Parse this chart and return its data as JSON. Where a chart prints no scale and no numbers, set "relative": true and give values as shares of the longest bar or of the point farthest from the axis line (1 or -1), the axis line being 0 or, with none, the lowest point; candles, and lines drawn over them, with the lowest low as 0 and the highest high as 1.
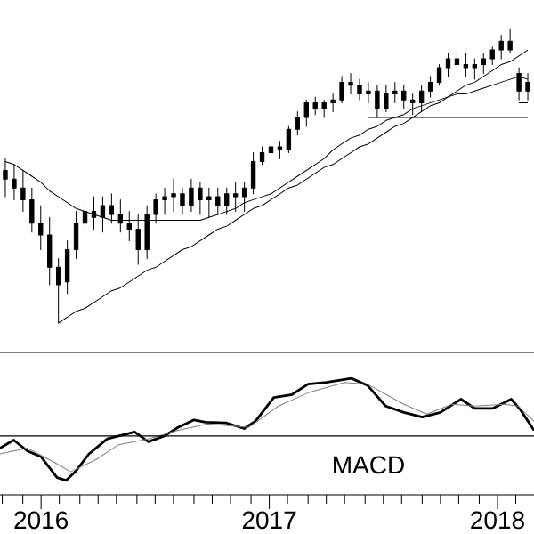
{
  "chart_data": [
    {
      "type": "candlestick",
      "relative": true,
      "tick_labels": false,
      "categories": [
        null,
        null,
        null,
        null,
        null,
        null,
        null,
        null,
        null,
        null,
        null,
        null,
        null,
        null,
        null,
        null,
        null,
        null,
        null,
        null,
        null,
        null,
        null,
        null,
        null,
        null,
        null,
        null,
        null,
        null,
        null,
        null,
        null,
        null,
        null,
        null,
        null,
        null,
        null,
        null,
        null,
        null,
        null,
        null,
        null,
        null,
        null,
        null,
        null,
        null,
        null,
        null,
        null,
        null,
        null,
        null,
        null,
        null,
        null,
        null
      ],
      "ohlc": [
        [
          0.52,
          0.56,
          0.43,
          0.49
        ],
        [
          0.49,
          0.54,
          0.42,
          0.46
        ],
        [
          0.46,
          0.52,
          0.38,
          0.42
        ],
        [
          0.42,
          0.46,
          0.31,
          0.34
        ],
        [
          0.34,
          0.4,
          0.25,
          0.3
        ],
        [
          0.3,
          0.36,
          0.13,
          0.19
        ],
        [
          0.19,
          0.22,
          0,
          0.13
        ],
        [
          0.14,
          0.28,
          0.1,
          0.25
        ],
        [
          0.25,
          0.38,
          0.22,
          0.34
        ],
        [
          0.34,
          0.42,
          0.3,
          0.38
        ],
        [
          0.38,
          0.43,
          0.32,
          0.36
        ],
        [
          0.36,
          0.43,
          0.31,
          0.4
        ],
        [
          0.4,
          0.44,
          0.34,
          0.37
        ],
        [
          0.37,
          0.42,
          0.31,
          0.34
        ],
        [
          0.34,
          0.38,
          0.28,
          0.32
        ],
        [
          0.32,
          0.37,
          0.2,
          0.25
        ],
        [
          0.25,
          0.4,
          0.22,
          0.37
        ],
        [
          0.37,
          0.44,
          0.34,
          0.42
        ],
        [
          0.42,
          0.46,
          0.37,
          0.43
        ],
        [
          0.43,
          0.49,
          0.38,
          0.44
        ],
        [
          0.44,
          0.46,
          0.37,
          0.4
        ],
        [
          0.4,
          0.49,
          0.38,
          0.46
        ],
        [
          0.46,
          0.48,
          0.37,
          0.42
        ],
        [
          0.42,
          0.46,
          0.36,
          0.43
        ],
        [
          0.43,
          0.46,
          0.37,
          0.4
        ],
        [
          0.4,
          0.46,
          0.37,
          0.44
        ],
        [
          0.44,
          0.48,
          0.38,
          0.43
        ],
        [
          0.43,
          0.48,
          0.38,
          0.46
        ],
        [
          0.46,
          0.58,
          0.44,
          0.55
        ],
        [
          0.55,
          0.6,
          0.54,
          0.58
        ],
        [
          0.58,
          0.62,
          0.55,
          0.6
        ],
        [
          0.6,
          0.62,
          0.56,
          0.59
        ],
        [
          0.59,
          0.67,
          0.58,
          0.66
        ],
        [
          0.66,
          0.72,
          0.64,
          0.7
        ],
        [
          0.7,
          0.76,
          0.67,
          0.75
        ],
        [
          0.75,
          0.77,
          0.71,
          0.73
        ],
        [
          0.73,
          0.76,
          0.7,
          0.75
        ],
        [
          0.75,
          0.78,
          0.72,
          0.76
        ],
        [
          0.76,
          0.84,
          0.75,
          0.82
        ],
        [
          0.82,
          0.85,
          0.78,
          0.81
        ],
        [
          0.81,
          0.83,
          0.76,
          0.78
        ],
        [
          0.78,
          0.82,
          0.75,
          0.79
        ],
        [
          0.79,
          0.81,
          0.7,
          0.73
        ],
        [
          0.73,
          0.81,
          0.72,
          0.78
        ],
        [
          0.78,
          0.82,
          0.75,
          0.79
        ],
        [
          0.79,
          0.81,
          0.73,
          0.76
        ],
        [
          0.76,
          0.78,
          0.71,
          0.75
        ],
        [
          0.75,
          0.81,
          0.72,
          0.79
        ],
        [
          0.79,
          0.84,
          0.77,
          0.82
        ],
        [
          0.82,
          0.88,
          0.81,
          0.87
        ],
        [
          0.87,
          0.92,
          0.84,
          0.9
        ],
        [
          0.9,
          0.93,
          0.87,
          0.88
        ],
        [
          0.88,
          0.92,
          0.84,
          0.87
        ],
        [
          0.87,
          0.9,
          0.83,
          0.88
        ],
        [
          0.88,
          0.92,
          0.85,
          0.9
        ],
        [
          0.9,
          0.94,
          0.88,
          0.93
        ],
        [
          0.93,
          0.98,
          0.9,
          0.96
        ],
        [
          0.96,
          1.0,
          0.92,
          0.93
        ],
        [
          0.85,
          0.87,
          0.76,
          0.79
        ],
        [
          0.79,
          0.85,
          0.76,
          0.82
        ]
      ],
      "series": [
        {
          "type": "line",
          "color": "#000000",
          "values": [
            0.55,
            0.54,
            0.52,
            0.5,
            0.48,
            0.45,
            0.43,
            0.41,
            0.39,
            0.38,
            0.37,
            0.36,
            0.35,
            0.35,
            0.35,
            0.35,
            0.35,
            0.35,
            0.35,
            0.35,
            0.35,
            0.35,
            0.35,
            0.36,
            0.37,
            0.38,
            0.39,
            0.41,
            0.42,
            0.43,
            0.44,
            0.46,
            0.48,
            0.5,
            0.52,
            0.54,
            0.56,
            0.59,
            0.61,
            0.63,
            0.64,
            0.66,
            0.67,
            0.69,
            0.7,
            0.71,
            0.73,
            0.74,
            0.75,
            0.76,
            0.77,
            0.78,
            0.78,
            0.79,
            0.8,
            0.81,
            0.82,
            0.83,
            0.84,
            0.83
          ]
        },
        {
          "type": "line",
          "color": "#000000",
          "values": [
            null,
            null,
            null,
            null,
            null,
            null,
            0,
            0.02,
            0.04,
            0.05,
            0.07,
            0.09,
            0.11,
            0.12,
            0.14,
            0.16,
            0.18,
            0.19,
            0.21,
            0.23,
            0.25,
            0.26,
            0.28,
            0.3,
            0.32,
            0.33,
            0.35,
            0.37,
            0.39,
            0.4,
            0.42,
            0.44,
            0.46,
            0.47,
            0.49,
            0.51,
            0.53,
            0.54,
            0.56,
            0.58,
            0.6,
            0.61,
            0.63,
            0.65,
            0.67,
            0.68,
            0.7,
            0.72,
            0.74,
            0.75,
            0.77,
            0.79,
            0.81,
            0.82,
            0.84,
            0.86,
            0.88,
            0.89,
            0.91,
            0.93
          ]
        },
        {
          "type": "line",
          "color": "#000000",
          "values": [
            null,
            null,
            null,
            null,
            null,
            null,
            null,
            null,
            null,
            null,
            null,
            null,
            null,
            null,
            null,
            null,
            null,
            null,
            null,
            null,
            null,
            null,
            null,
            null,
            null,
            null,
            null,
            null,
            null,
            null,
            null,
            null,
            null,
            null,
            null,
            null,
            null,
            null,
            null,
            null,
            null,
            0.7,
            0.7,
            0.7,
            0.7,
            0.7,
            0.7,
            0.7,
            0.7,
            0.7,
            0.7,
            0.7,
            0.7,
            0.7,
            0.7,
            0.7,
            0.7,
            0.7,
            0.7,
            0.7
          ]
        },
        {
          "type": "line",
          "color": "#000000",
          "values": [
            null,
            null,
            null,
            null,
            null,
            null,
            null,
            null,
            null,
            null,
            null,
            null,
            null,
            null,
            null,
            null,
            null,
            null,
            null,
            null,
            null,
            null,
            null,
            null,
            null,
            null,
            null,
            null,
            null,
            null,
            null,
            null,
            null,
            null,
            null,
            null,
            null,
            null,
            null,
            null,
            null,
            null,
            null,
            null,
            null,
            null,
            null,
            null,
            null,
            null,
            null,
            null,
            null,
            null,
            null,
            null,
            null,
            null,
            0.75,
            0.75
          ]
        }
      ]
    },
    {
      "type": "line",
      "relative": true,
      "tick_labels": "x",
      "xlim": [
        2015.82,
        2018.164
      ],
      "xticks": [
        {
          "value": 2015.833,
          "label": null
        },
        {
          "value": 2015.917,
          "label": null
        },
        2016,
        {
          "value": 2016.083,
          "label": null
        },
        {
          "value": 2016.167,
          "label": null
        },
        {
          "value": 2016.25,
          "label": null
        },
        {
          "value": 2016.333,
          "label": null
        },
        {
          "value": 2016.417,
          "label": null
        },
        {
          "value": 2016.5,
          "label": null
        },
        {
          "value": 2016.583,
          "label": null
        },
        {
          "value": 2016.667,
          "label": null
        },
        {
          "value": 2016.75,
          "label": null
        },
        {
          "value": 2016.833,
          "label": null
        },
        {
          "value": 2016.917,
          "label": null
        },
        2017,
        {
          "value": 2017.083,
          "label": null
        },
        {
          "value": 2017.167,
          "label": null
        },
        {
          "value": 2017.25,
          "label": null
        },
        {
          "value": 2017.333,
          "label": null
        },
        {
          "value": 2017.417,
          "label": null
        },
        {
          "value": 2017.5,
          "label": null
        },
        {
          "value": 2017.583,
          "label": null
        },
        {
          "value": 2017.667,
          "label": null
        },
        {
          "value": 2017.75,
          "label": null
        },
        {
          "value": 2017.833,
          "label": null
        },
        {
          "value": 2017.917,
          "label": null
        },
        2018,
        {
          "value": 2018.083,
          "label": null
        }
      ],
      "ref_lines": [
        {
          "axis": "y",
          "value": 0,
          "color": "#000000"
        }
      ],
      "annotations": [
        "MACD"
      ],
      "series": [
        {
          "color": "#000000",
          "x": [
            2015.82,
            2015.885,
            2015.938,
            2016.003,
            2016.068,
            2016.107,
            2016.146,
            2016.211,
            2016.289,
            2016.341,
            2016.406,
            2016.471,
            2016.536,
            2016.602,
            2016.667,
            2016.719,
            2016.81,
            2016.888,
            2016.94,
            2017.018,
            2017.096,
            2017.174,
            2017.253,
            2017.357,
            2017.435,
            2017.513,
            2017.591,
            2017.669,
            2017.747,
            2017.839,
            2017.904,
            2017.982,
            2018.06,
            2018.099,
            2018.164
          ],
          "values": [
            -0.21,
            -0.07,
            -0.26,
            -0.36,
            -0.72,
            -0.77,
            -0.62,
            -0.31,
            -0.05,
            0,
            0.07,
            -0.1,
            0,
            0.15,
            0.28,
            0.24,
            0.23,
            0.13,
            0.26,
            0.67,
            0.72,
            0.9,
            0.93,
            1.0,
            0.88,
            0.52,
            0.41,
            0.33,
            0.41,
            0.64,
            0.48,
            0.48,
            0.64,
            0.46,
            0.1
          ]
        },
        {
          "color": "#808080",
          "x": [
            2015.82,
            2015.938,
            2016.055,
            2016.133,
            2016.237,
            2016.341,
            2016.471,
            2016.602,
            2016.732,
            2016.914,
            2017.044,
            2017.174,
            2017.331,
            2017.435,
            2017.591,
            2017.695,
            2017.799,
            2017.904,
            2018.034,
            2018.086,
            2018.164
          ],
          "values": [
            -0.31,
            -0.21,
            -0.46,
            -0.62,
            -0.41,
            -0.15,
            -0.05,
            0.1,
            0.21,
            0.15,
            0.52,
            0.75,
            0.93,
            0.9,
            0.55,
            0.38,
            0.55,
            0.52,
            0.55,
            0.52,
            0.26
          ]
        }
      ]
    }
  ]
}
